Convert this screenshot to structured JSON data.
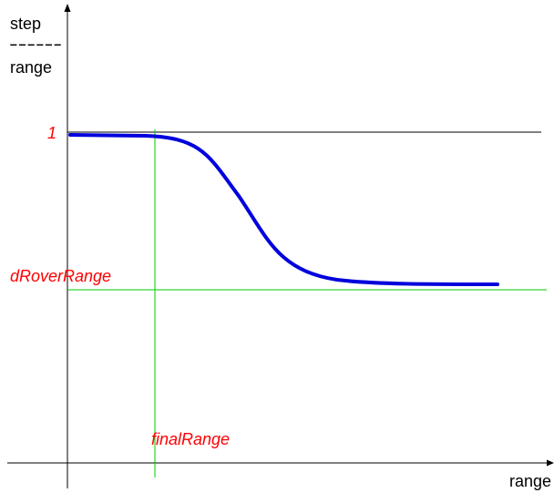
{
  "diagram": {
    "y_axis_label_top": "step",
    "y_axis_label_divider": "------",
    "y_axis_label_bottom": "range",
    "x_axis_label": "range",
    "level_one_label": "1",
    "level_drover_label": "dRoverRange",
    "final_range_label": "finalRange"
  },
  "colors": {
    "curve": "#0000dd",
    "guide_lines": "#00cc00",
    "reference_line": "#000000",
    "labels": "#ff0000",
    "axes": "#000000"
  },
  "chart_data": {
    "type": "line",
    "title": "",
    "xlabel": "range",
    "ylabel": "step / range",
    "annotations": [
      "1",
      "dRoverRange",
      "finalRange"
    ],
    "grid": false
  }
}
